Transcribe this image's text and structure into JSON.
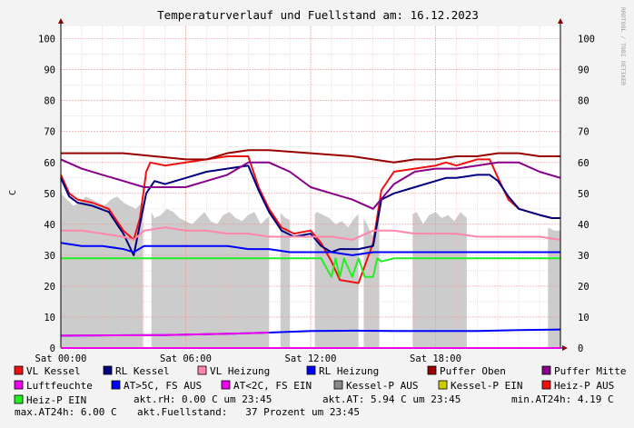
{
  "chart_data": {
    "type": "line",
    "title": "Temperaturverlauf und Fuellstand am: 16.12.2023",
    "ylabel": "C",
    "watermark": "RRDTOOL / TOBI OETIKER",
    "ylim": [
      0,
      104
    ],
    "xlim": [
      0,
      24
    ],
    "yticks": [
      0,
      10,
      20,
      30,
      40,
      50,
      60,
      70,
      80,
      90,
      100
    ],
    "xticks": [
      {
        "label": "Sat 00:00",
        "x": 0
      },
      {
        "label": "Sat 06:00",
        "x": 6
      },
      {
        "label": "Sat 12:00",
        "x": 12
      },
      {
        "label": "Sat 18:00",
        "x": 18
      }
    ],
    "grid": true,
    "legend_placement": "bottom",
    "series": [
      {
        "name": "VL Kessel",
        "color": "#ee1111",
        "x": [
          0,
          0.4,
          0.8,
          1.5,
          2.3,
          3.0,
          3.5,
          3.8,
          4.1,
          4.3,
          5,
          6,
          7,
          8,
          9,
          9.5,
          10,
          10.6,
          11.2,
          12,
          12.5,
          13,
          13.4,
          14.3,
          15,
          15.4,
          16,
          17,
          18,
          18.5,
          19,
          20,
          20.6,
          21,
          21.5,
          22,
          22.5,
          23,
          23.6,
          24
        ],
        "y": [
          56,
          50,
          48,
          47,
          45,
          38,
          35,
          42,
          57,
          60,
          59,
          60,
          61,
          62,
          62,
          52,
          45,
          39,
          37,
          38,
          34,
          28,
          22,
          21,
          34,
          51,
          57,
          58,
          59,
          60,
          59,
          61,
          61,
          55,
          48,
          45,
          44,
          43,
          42,
          42
        ]
      },
      {
        "name": "RL Kessel",
        "color": "#000080",
        "x": [
          0,
          0.4,
          0.8,
          1.5,
          2.3,
          3.0,
          3.5,
          3.8,
          4.1,
          4.5,
          5,
          6,
          7,
          8,
          9,
          9.5,
          10,
          10.6,
          11.2,
          12,
          12.5,
          13,
          13.4,
          14.3,
          15,
          15.4,
          16,
          17,
          18,
          18.5,
          19,
          20,
          20.6,
          21,
          21.5,
          22,
          22.5,
          23,
          23.6,
          24
        ],
        "y": [
          55,
          49,
          47,
          46,
          44,
          37,
          30,
          40,
          50,
          54,
          53,
          55,
          57,
          58,
          59,
          51,
          44,
          38,
          36,
          37,
          33,
          31,
          32,
          32,
          33,
          48,
          50,
          52,
          54,
          55,
          55,
          56,
          56,
          54,
          49,
          45,
          44,
          43,
          42,
          42
        ]
      },
      {
        "name": "VL Heizung",
        "color": "#ff88aa",
        "x": [
          0,
          1,
          2,
          3,
          3.5,
          4,
          5,
          6,
          7,
          8,
          9,
          10,
          11,
          12,
          13,
          14,
          15,
          16,
          17,
          18,
          19,
          20,
          21,
          22,
          23,
          24
        ],
        "y": [
          38,
          38,
          37,
          36,
          35,
          38,
          39,
          38,
          38,
          37,
          37,
          36,
          36,
          36,
          36,
          35,
          38,
          38,
          37,
          37,
          37,
          36,
          36,
          36,
          36,
          35
        ]
      },
      {
        "name": "RL Heizung",
        "color": "#0000ff",
        "x": [
          0,
          1,
          2,
          3,
          3.5,
          4,
          5,
          6,
          7,
          8,
          9,
          10,
          11,
          12,
          13,
          14,
          15,
          16,
          17,
          18,
          19,
          20,
          21,
          22,
          23,
          24
        ],
        "y": [
          34,
          33,
          33,
          32,
          31,
          33,
          33,
          33,
          33,
          33,
          32,
          32,
          31,
          31,
          31,
          30,
          31,
          31,
          31,
          31,
          31,
          31,
          31,
          31,
          31,
          31
        ]
      },
      {
        "name": "Puffer Oben",
        "color": "#990000",
        "x": [
          0,
          3,
          6,
          7,
          8,
          9,
          10,
          12,
          14,
          16,
          17,
          18,
          19,
          20,
          21,
          22,
          23,
          24
        ],
        "y": [
          63,
          63,
          61,
          61,
          63,
          64,
          64,
          63,
          62,
          60,
          61,
          61,
          62,
          62,
          63,
          63,
          62,
          62
        ]
      },
      {
        "name": "Puffer Mitte",
        "color": "#880088",
        "x": [
          0,
          1,
          2,
          3,
          4,
          5,
          6,
          7,
          8,
          9,
          10,
          11,
          12,
          13,
          14,
          15,
          16,
          17,
          18,
          19,
          20,
          21,
          22,
          23,
          24
        ],
        "y": [
          61,
          58,
          56,
          54,
          52,
          52,
          52,
          54,
          56,
          60,
          60,
          57,
          52,
          50,
          48,
          45,
          53,
          57,
          58,
          58,
          59,
          60,
          60,
          57,
          55
        ]
      },
      {
        "name": "Heiz-P EIN",
        "color": "#22ee22",
        "x": [
          0,
          2,
          4,
          6,
          8,
          10,
          12.5,
          13,
          13.2,
          13.4,
          13.6,
          14,
          14.3,
          14.6,
          15,
          15.2,
          15.4,
          16,
          18,
          20,
          22,
          24
        ],
        "y": [
          29,
          29,
          29,
          29,
          29,
          29,
          29,
          23,
          29,
          23,
          29,
          23,
          29,
          23,
          23,
          29,
          28,
          29,
          29,
          29,
          29,
          29
        ]
      },
      {
        "name": "Luftfeuchte",
        "color": "#ee00ee",
        "x": [
          0,
          24
        ],
        "y": [
          0,
          0
        ]
      },
      {
        "name": "AT>5C, FS AUS",
        "color": "#0000ff",
        "x": [
          0,
          5,
          8,
          10,
          12,
          14,
          16,
          18,
          20,
          22,
          24
        ],
        "y": [
          4,
          4.2,
          4.6,
          5,
          5.5,
          5.6,
          5.5,
          5.5,
          5.5,
          5.8,
          6
        ]
      },
      {
        "name": "AT<2C, FS EIN",
        "color": "#ee00ee",
        "x": [
          0,
          5,
          8,
          10
        ],
        "y": [
          4,
          4.2,
          4.6,
          5
        ]
      }
    ],
    "fill_series": {
      "name": "Fuellstand",
      "color": "#cccccc",
      "x": [
        0,
        0.3,
        0.6,
        0.9,
        1.2,
        1.5,
        1.8,
        2.1,
        2.4,
        2.7,
        3,
        3.3,
        3.6,
        3.9,
        4.2,
        4.5,
        4.8,
        5.1,
        5.4,
        5.7,
        6,
        6.3,
        6.6,
        6.9,
        7.2,
        7.5,
        7.8,
        8.1,
        8.4,
        8.7,
        9,
        9.3,
        9.6,
        9.9,
        10.2,
        10.5,
        10.8,
        11.1,
        11.4,
        11.7,
        12,
        12.3,
        12.6,
        12.9,
        13.2,
        13.5,
        13.8,
        14.1,
        14.4,
        14.7,
        15,
        15.3,
        15.6,
        15.9,
        16.2,
        16.5,
        16.8,
        17.1,
        17.4,
        17.7,
        18,
        18.3,
        18.6,
        18.9,
        19.2,
        19.5,
        19.8,
        20.1,
        20.4,
        20.7,
        21,
        21.3,
        21.6,
        21.9,
        22.2,
        22.5,
        22.8,
        23.1,
        23.4,
        23.7,
        24
      ],
      "y": [
        50,
        48,
        46,
        47,
        49,
        48,
        47,
        46,
        48,
        49,
        47,
        46,
        45,
        47,
        46,
        42,
        43,
        45,
        44,
        42,
        41,
        40,
        42,
        44,
        41,
        40,
        43,
        44,
        42,
        41,
        43,
        44,
        40,
        42,
        43,
        44,
        42,
        41,
        43,
        44,
        42,
        44,
        43,
        42,
        40,
        41,
        39,
        42,
        44,
        40,
        36,
        45,
        44,
        43,
        41,
        42,
        43,
        44,
        40,
        43,
        44,
        42,
        43,
        41,
        44,
        42,
        43,
        42,
        43,
        44,
        42,
        43,
        41,
        40,
        41,
        42,
        40,
        41,
        39,
        38,
        38
      ]
    },
    "fill_gaps": [
      3.95,
      4.35,
      10.0,
      10.55,
      11.0,
      12.2,
      14.3,
      14.55,
      15.3,
      16.9,
      19.5,
      23.4
    ],
    "legend": [
      {
        "label": "VL Kessel",
        "color": "#ee1111"
      },
      {
        "label": "RL Kessel",
        "color": "#000080"
      },
      {
        "label": "VL Heizung",
        "color": "#ff88aa"
      },
      {
        "label": "RL Heizung",
        "color": "#0000ff"
      },
      {
        "label": "Puffer Oben",
        "color": "#990000"
      },
      {
        "label": "Puffer Mitte",
        "color": "#880088"
      },
      {
        "label": "Luftfeuchte",
        "color": "#ee00ee"
      },
      {
        "label": "AT>5C, FS AUS",
        "color": "#0000ff"
      },
      {
        "label": "AT<2C, FS EIN",
        "color": "#ee00ee"
      },
      {
        "label": "Kessel-P AUS",
        "color": "#888888"
      },
      {
        "label": "Kessel-P EIN",
        "color": "#cccc00"
      },
      {
        "label": "Heiz-P AUS",
        "color": "#ee1111"
      },
      {
        "label": "Heiz-P EIN",
        "color": "#22ee22"
      }
    ],
    "status_lines": [
      "akt.rH: 0.00 C um 23:45",
      "akt.AT: 5.94 C um 23:45",
      "min.AT24h: 4.19 C",
      "max.AT24h: 6.00 C",
      "akt.Fuellstand:   37 Prozent um 23:45"
    ]
  }
}
